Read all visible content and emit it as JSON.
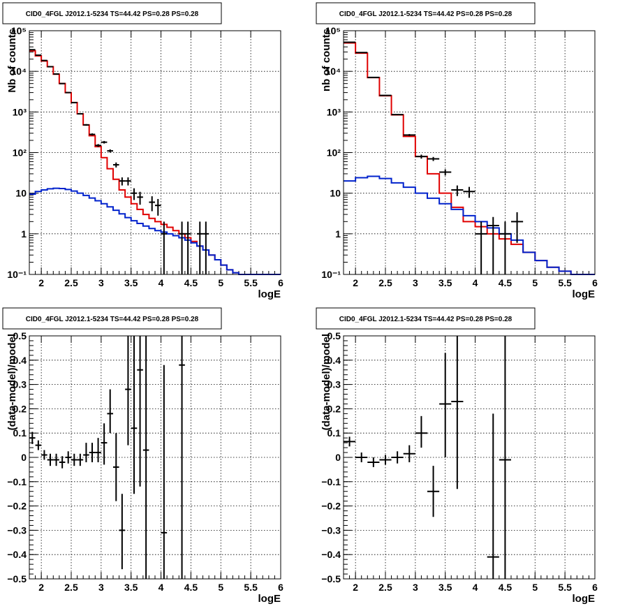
{
  "colors": {
    "model_total": "#e00000",
    "model_source": "#0022cc",
    "data": "#000000"
  },
  "chart_data": [
    {
      "id": "counts-left",
      "type": "line",
      "title": "CID0_4FGL J2012.1-5234 TS=44.42 PS=0.28 PS=0.28",
      "xlabel": "logE",
      "ylabel": "Nb of counts",
      "xlim": [
        1.8,
        6.0
      ],
      "ylim": [
        0.1,
        100000
      ],
      "yscale": "log",
      "grid": true,
      "xticks": [
        "2",
        "2.5",
        "3",
        "3.5",
        "4",
        "4.5",
        "5",
        "5.5",
        "6"
      ],
      "ytick_labels": [
        "10⁻¹",
        "1",
        "10",
        "10²",
        "10³",
        "10⁴",
        "10⁵"
      ],
      "bin_edges": [
        1.8,
        1.9,
        2.0,
        2.1,
        2.2,
        2.3,
        2.4,
        2.5,
        2.6,
        2.7,
        2.8,
        2.9,
        3.0,
        3.1,
        3.2,
        3.3,
        3.4,
        3.5,
        3.6,
        3.7,
        3.8,
        3.9,
        4.0,
        4.1,
        4.2,
        4.3,
        4.4,
        4.5,
        4.6,
        4.7,
        4.8,
        4.9,
        5.0,
        5.1,
        5.2,
        5.3,
        5.4,
        5.5,
        5.6,
        5.7,
        5.8,
        5.9,
        6.0
      ],
      "series": [
        {
          "style": "step",
          "color": "model_total",
          "values": [
            32000,
            24000,
            18000,
            13000,
            8500,
            5000,
            3000,
            1700,
            900,
            480,
            260,
            140,
            75,
            40,
            22,
            12,
            8,
            5.5,
            4,
            3,
            2.4,
            2,
            1.7,
            1.45,
            1.2,
            1.0,
            0.8,
            0.65,
            0.5,
            0.4,
            0.3,
            0.23,
            0.17,
            0.13,
            0.11,
            0.1,
            0.1,
            0.1,
            0.1,
            0.1,
            0.1,
            0.1
          ]
        },
        {
          "style": "step",
          "color": "model_source",
          "values": [
            9.5,
            11,
            12,
            12.8,
            13.2,
            13,
            12.3,
            11.3,
            10,
            8.8,
            7.6,
            6.5,
            5.5,
            4.6,
            3.8,
            3.1,
            2.5,
            2.1,
            1.8,
            1.55,
            1.35,
            1.2,
            1.1,
            1.0,
            0.9,
            0.8,
            0.7,
            0.6,
            0.5,
            0.4,
            0.3,
            0.23,
            0.17,
            0.13,
            0.11,
            0.1,
            0.1,
            0.1,
            0.1,
            0.1,
            0.1,
            0.1
          ]
        },
        {
          "style": "errorbars",
          "color": "data",
          "points": [
            {
              "x": 1.85,
              "y": 34000,
              "xerr": 0.05,
              "ylo": 33800,
              "yhi": 34200
            },
            {
              "x": 1.95,
              "y": 25000,
              "xerr": 0.05,
              "ylo": 24800,
              "yhi": 25200
            },
            {
              "x": 2.05,
              "y": 18500,
              "xerr": 0.05,
              "ylo": 18300,
              "yhi": 18700
            },
            {
              "x": 2.15,
              "y": 13000,
              "xerr": 0.05,
              "ylo": 12800,
              "yhi": 13200
            },
            {
              "x": 2.25,
              "y": 8600,
              "xerr": 0.05,
              "ylo": 8450,
              "yhi": 8750
            },
            {
              "x": 2.35,
              "y": 5000,
              "xerr": 0.05,
              "ylo": 4900,
              "yhi": 5100
            },
            {
              "x": 2.45,
              "y": 3000,
              "xerr": 0.05,
              "ylo": 2940,
              "yhi": 3060
            },
            {
              "x": 2.55,
              "y": 1700,
              "xerr": 0.05,
              "ylo": 1660,
              "yhi": 1740
            },
            {
              "x": 2.65,
              "y": 900,
              "xerr": 0.05,
              "ylo": 870,
              "yhi": 930
            },
            {
              "x": 2.75,
              "y": 480,
              "xerr": 0.05,
              "ylo": 458,
              "yhi": 502
            },
            {
              "x": 2.85,
              "y": 280,
              "xerr": 0.05,
              "ylo": 263,
              "yhi": 297
            },
            {
              "x": 2.95,
              "y": 150,
              "xerr": 0.05,
              "ylo": 138,
              "yhi": 162
            },
            {
              "x": 3.05,
              "y": 180,
              "xerr": 0.05,
              "ylo": 167,
              "yhi": 193
            },
            {
              "x": 3.15,
              "y": 110,
              "xerr": 0.05,
              "ylo": 100,
              "yhi": 120
            },
            {
              "x": 3.25,
              "y": 50,
              "xerr": 0.05,
              "ylo": 43,
              "yhi": 57
            },
            {
              "x": 3.35,
              "y": 20,
              "xerr": 0.05,
              "ylo": 15.5,
              "yhi": 24.5
            },
            {
              "x": 3.45,
              "y": 20,
              "xerr": 0.05,
              "ylo": 15.5,
              "yhi": 24.5
            },
            {
              "x": 3.55,
              "y": 10,
              "xerr": 0.05,
              "ylo": 6.8,
              "yhi": 13.2
            },
            {
              "x": 3.65,
              "y": 8,
              "xerr": 0.05,
              "ylo": 5.2,
              "yhi": 10.8
            },
            {
              "x": 3.85,
              "y": 6,
              "xerr": 0.05,
              "ylo": 3.6,
              "yhi": 8.4
            },
            {
              "x": 3.95,
              "y": 5,
              "xerr": 0.05,
              "ylo": 2.8,
              "yhi": 7.2
            },
            {
              "x": 4.05,
              "y": 1,
              "xerr": 0.05,
              "ylo": 0.1,
              "yhi": 2
            },
            {
              "x": 4.35,
              "y": 1,
              "xerr": 0.05,
              "ylo": 0.1,
              "yhi": 2
            },
            {
              "x": 4.45,
              "y": 1,
              "xerr": 0.05,
              "ylo": 0.1,
              "yhi": 2
            },
            {
              "x": 4.65,
              "y": 1,
              "xerr": 0.05,
              "ylo": 0.1,
              "yhi": 2
            },
            {
              "x": 4.75,
              "y": 1,
              "xerr": 0.05,
              "ylo": 0.1,
              "yhi": 2
            }
          ]
        }
      ]
    },
    {
      "id": "counts-right",
      "type": "line",
      "title": "CID0_4FGL J2012.1-5234 TS=44.42 PS=0.28 PS=0.28",
      "xlabel": "logE",
      "ylabel": "nb of counts",
      "xlim": [
        1.8,
        6.0
      ],
      "ylim": [
        0.1,
        100000
      ],
      "yscale": "log",
      "grid": true,
      "xticks": [
        "2",
        "2.5",
        "3",
        "3.5",
        "4",
        "4.5",
        "5",
        "5.5",
        "6"
      ],
      "ytick_labels": [
        "10⁻¹",
        "1",
        "10",
        "10²",
        "10³",
        "10⁴",
        "10⁵"
      ],
      "bin_edges": [
        1.8,
        2.0,
        2.2,
        2.4,
        2.6,
        2.8,
        3.0,
        3.2,
        3.4,
        3.6,
        3.8,
        4.0,
        4.2,
        4.4,
        4.6,
        4.8,
        5.0,
        5.2,
        5.4,
        5.6,
        5.8,
        6.0
      ],
      "series": [
        {
          "style": "step",
          "color": "model_total",
          "values": [
            50000,
            28000,
            7000,
            2500,
            850,
            250,
            80,
            30,
            10,
            4.5,
            2.0,
            1.5,
            1.0,
            0.75,
            0.55,
            0.35,
            0.22,
            0.15,
            0.12,
            0.1,
            0.1
          ]
        },
        {
          "style": "step",
          "color": "model_source",
          "values": [
            20,
            24,
            26,
            23,
            18,
            14,
            10,
            7.5,
            5.5,
            4.0,
            2.8,
            2.0,
            1.4,
            1.0,
            0.7,
            0.35,
            0.22,
            0.15,
            0.12,
            0.1,
            0.1
          ]
        },
        {
          "style": "errorbars",
          "color": "data",
          "points": [
            {
              "x": 1.9,
              "y": 52000,
              "xerr": 0.1,
              "ylo": 51600,
              "yhi": 52400
            },
            {
              "x": 2.1,
              "y": 29000,
              "xerr": 0.1,
              "ylo": 28700,
              "yhi": 29300
            },
            {
              "x": 2.3,
              "y": 7100,
              "xerr": 0.1,
              "ylo": 6950,
              "yhi": 7250
            },
            {
              "x": 2.5,
              "y": 2550,
              "xerr": 0.1,
              "ylo": 2500,
              "yhi": 2600
            },
            {
              "x": 2.7,
              "y": 860,
              "xerr": 0.1,
              "ylo": 830,
              "yhi": 890
            },
            {
              "x": 2.9,
              "y": 270,
              "xerr": 0.1,
              "ylo": 254,
              "yhi": 286
            },
            {
              "x": 3.1,
              "y": 80,
              "xerr": 0.1,
              "ylo": 71,
              "yhi": 89
            },
            {
              "x": 3.3,
              "y": 70,
              "xerr": 0.1,
              "ylo": 62,
              "yhi": 78
            },
            {
              "x": 3.5,
              "y": 33,
              "xerr": 0.1,
              "ylo": 27.3,
              "yhi": 38.7
            },
            {
              "x": 3.7,
              "y": 12,
              "xerr": 0.1,
              "ylo": 8.5,
              "yhi": 15.5
            },
            {
              "x": 3.9,
              "y": 11,
              "xerr": 0.1,
              "ylo": 7.7,
              "yhi": 14.3
            },
            {
              "x": 4.1,
              "y": 1,
              "xerr": 0.1,
              "ylo": 0.1,
              "yhi": 2
            },
            {
              "x": 4.3,
              "y": 1.6,
              "xerr": 0.1,
              "ylo": 0.1,
              "yhi": 2.6
            },
            {
              "x": 4.5,
              "y": 1,
              "xerr": 0.1,
              "ylo": 0.1,
              "yhi": 2
            },
            {
              "x": 4.7,
              "y": 2,
              "xerr": 0.1,
              "ylo": 0.6,
              "yhi": 3.4
            }
          ]
        }
      ]
    },
    {
      "id": "residuals-left",
      "type": "scatter",
      "title": "CID0_4FGL J2012.1-5234 TS=44.42 PS=0.28 PS=0.28",
      "xlabel": "logE",
      "ylabel": "(data-model)/model",
      "xlim": [
        1.8,
        6.0
      ],
      "ylim": [
        -0.5,
        0.5
      ],
      "yscale": "linear",
      "grid": true,
      "xticks": [
        "2",
        "2.5",
        "3",
        "3.5",
        "4",
        "4.5",
        "5",
        "5.5",
        "6"
      ],
      "ytick_labels": [
        "−0.5",
        "−0.4",
        "−0.3",
        "−0.2",
        "−0.1",
        "0",
        "0.1",
        "0.2",
        "0.3",
        "0.4",
        "0.5"
      ],
      "series": [
        {
          "style": "errorbars",
          "color": "data",
          "points": [
            {
              "x": 1.85,
              "y": 0.08,
              "xerr": 0.05,
              "ylo": 0.055,
              "yhi": 0.105
            },
            {
              "x": 1.95,
              "y": 0.05,
              "xerr": 0.05,
              "ylo": 0.03,
              "yhi": 0.07
            },
            {
              "x": 2.05,
              "y": 0.01,
              "xerr": 0.05,
              "ylo": -0.01,
              "yhi": 0.03
            },
            {
              "x": 2.15,
              "y": -0.01,
              "xerr": 0.05,
              "ylo": -0.035,
              "yhi": 0.015
            },
            {
              "x": 2.25,
              "y": -0.01,
              "xerr": 0.05,
              "ylo": -0.035,
              "yhi": 0.015
            },
            {
              "x": 2.35,
              "y": -0.02,
              "xerr": 0.05,
              "ylo": -0.045,
              "yhi": 0.005
            },
            {
              "x": 2.45,
              "y": 0.0,
              "xerr": 0.05,
              "ylo": -0.025,
              "yhi": 0.025
            },
            {
              "x": 2.55,
              "y": -0.01,
              "xerr": 0.05,
              "ylo": -0.035,
              "yhi": 0.015
            },
            {
              "x": 2.65,
              "y": -0.01,
              "xerr": 0.05,
              "ylo": -0.035,
              "yhi": 0.015
            },
            {
              "x": 2.75,
              "y": 0.01,
              "xerr": 0.05,
              "ylo": -0.02,
              "yhi": 0.06
            },
            {
              "x": 2.85,
              "y": 0.02,
              "xerr": 0.05,
              "ylo": -0.02,
              "yhi": 0.06
            },
            {
              "x": 2.95,
              "y": 0.02,
              "xerr": 0.05,
              "ylo": -0.02,
              "yhi": 0.08
            },
            {
              "x": 3.05,
              "y": 0.06,
              "xerr": 0.05,
              "ylo": -0.03,
              "yhi": 0.14
            },
            {
              "x": 3.15,
              "y": 0.18,
              "xerr": 0.05,
              "ylo": 0.1,
              "yhi": 0.28
            },
            {
              "x": 3.25,
              "y": -0.04,
              "xerr": 0.05,
              "ylo": -0.18,
              "yhi": 0.1
            },
            {
              "x": 3.35,
              "y": -0.3,
              "xerr": 0.05,
              "ylo": -0.46,
              "yhi": -0.15
            },
            {
              "x": 3.45,
              "y": 0.28,
              "xerr": 0.05,
              "ylo": 0.05,
              "yhi": 0.5
            },
            {
              "x": 3.55,
              "y": 0.12,
              "xerr": 0.05,
              "ylo": -0.15,
              "yhi": 0.5
            },
            {
              "x": 3.65,
              "y": 0.36,
              "xerr": 0.05,
              "ylo": -0.12,
              "yhi": 0.5
            },
            {
              "x": 3.75,
              "y": 0.03,
              "xerr": 0.05,
              "ylo": -0.5,
              "yhi": 0.5
            },
            {
              "x": 4.05,
              "y": -0.31,
              "xerr": 0.05,
              "ylo": -0.5,
              "yhi": 0.38
            },
            {
              "x": 4.35,
              "y": 0.38,
              "xerr": 0.05,
              "ylo": -0.5,
              "yhi": 0.5
            }
          ]
        }
      ]
    },
    {
      "id": "residuals-right",
      "type": "scatter",
      "title": "CID0_4FGL J2012.1-5234 TS=44.42 PS=0.28 PS=0.28",
      "xlabel": "logE",
      "ylabel": "(data-model)/model",
      "xlim": [
        1.8,
        6.0
      ],
      "ylim": [
        -0.5,
        0.5
      ],
      "yscale": "linear",
      "grid": true,
      "xticks": [
        "2",
        "2.5",
        "3",
        "3.5",
        "4",
        "4.5",
        "5",
        "5.5",
        "6"
      ],
      "ytick_labels": [
        "−0.5",
        "−0.4",
        "−0.3",
        "−0.2",
        "−0.1",
        "0",
        "0.1",
        "0.2",
        "0.3",
        "0.4",
        "0.5"
      ],
      "series": [
        {
          "style": "errorbars",
          "color": "data",
          "points": [
            {
              "x": 1.9,
              "y": 0.065,
              "xerr": 0.1,
              "ylo": 0.045,
              "yhi": 0.085
            },
            {
              "x": 2.1,
              "y": 0.0,
              "xerr": 0.1,
              "ylo": -0.02,
              "yhi": 0.02
            },
            {
              "x": 2.3,
              "y": -0.02,
              "xerr": 0.1,
              "ylo": -0.04,
              "yhi": 0.0
            },
            {
              "x": 2.5,
              "y": -0.01,
              "xerr": 0.1,
              "ylo": -0.03,
              "yhi": 0.01
            },
            {
              "x": 2.7,
              "y": 0.0,
              "xerr": 0.1,
              "ylo": -0.025,
              "yhi": 0.025
            },
            {
              "x": 2.9,
              "y": 0.015,
              "xerr": 0.1,
              "ylo": -0.02,
              "yhi": 0.05
            },
            {
              "x": 3.1,
              "y": 0.1,
              "xerr": 0.1,
              "ylo": 0.04,
              "yhi": 0.17
            },
            {
              "x": 3.3,
              "y": -0.14,
              "xerr": 0.1,
              "ylo": -0.245,
              "yhi": -0.035
            },
            {
              "x": 3.5,
              "y": 0.22,
              "xerr": 0.1,
              "ylo": 0.0,
              "yhi": 0.43
            },
            {
              "x": 3.7,
              "y": 0.23,
              "xerr": 0.1,
              "ylo": -0.13,
              "yhi": 0.5
            },
            {
              "x": 4.3,
              "y": -0.41,
              "xerr": 0.1,
              "ylo": -0.5,
              "yhi": 0.18
            },
            {
              "x": 4.5,
              "y": -0.01,
              "xerr": 0.1,
              "ylo": -0.5,
              "yhi": 0.5
            }
          ]
        }
      ]
    }
  ]
}
